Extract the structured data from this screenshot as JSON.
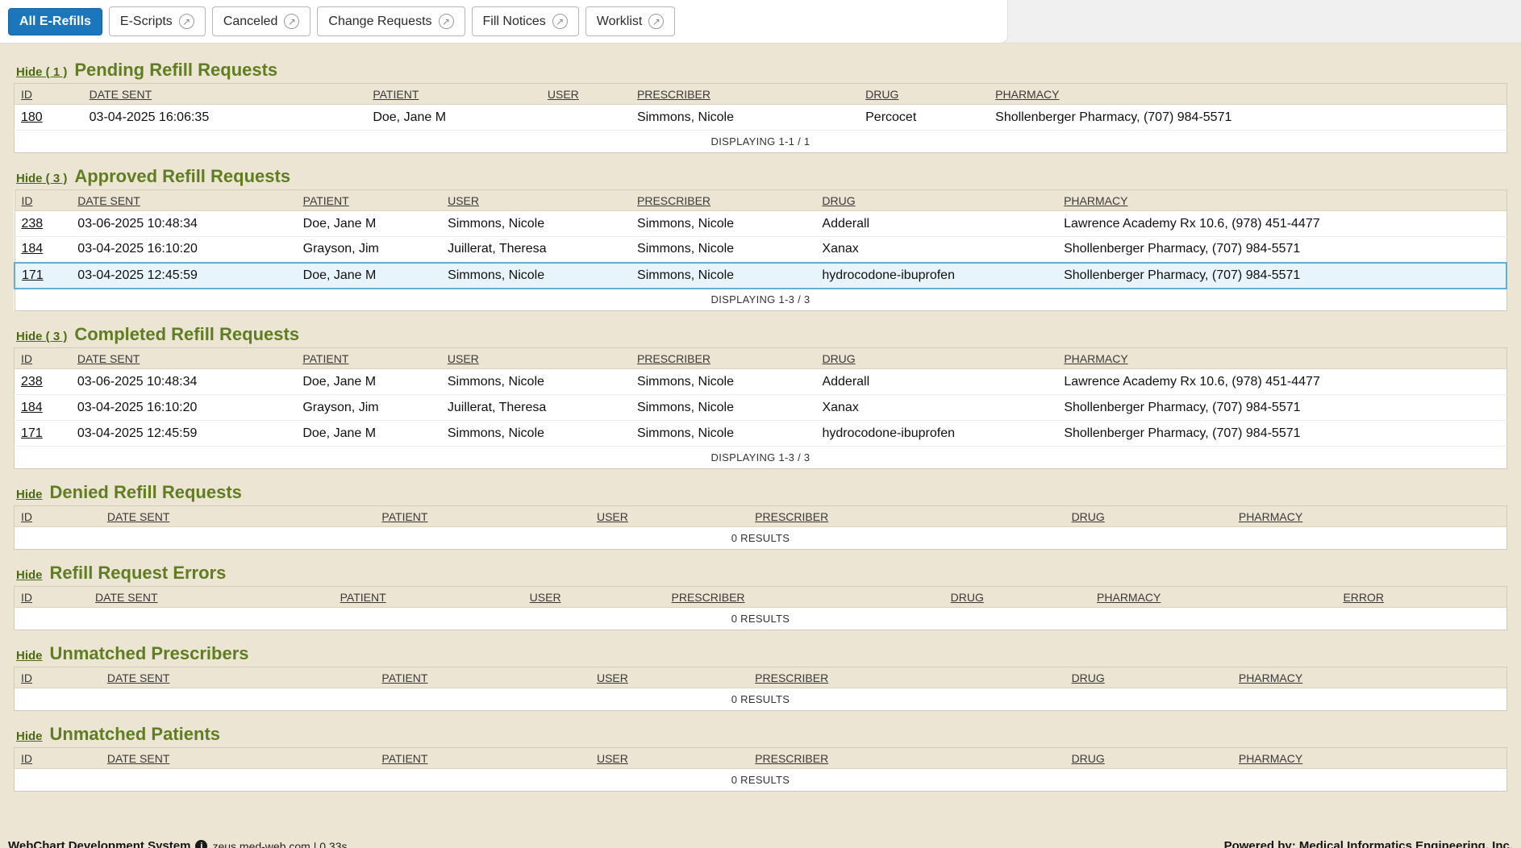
{
  "tabs": [
    {
      "label": "All E-Refills",
      "active": true,
      "external": false
    },
    {
      "label": "E-Scripts",
      "active": false,
      "external": true
    },
    {
      "label": "Canceled",
      "active": false,
      "external": true
    },
    {
      "label": "Change Requests",
      "active": false,
      "external": true
    },
    {
      "label": "Fill Notices",
      "active": false,
      "external": true
    },
    {
      "label": "Worklist",
      "active": false,
      "external": true
    }
  ],
  "icons": {
    "external_link_glyph": "↗",
    "info_glyph": "i"
  },
  "sections": [
    {
      "id": "pending-refill-requests",
      "hide_label": "Hide ( 1 )",
      "title": "Pending Refill Requests",
      "columns": [
        "ID",
        "DATE SENT",
        "PATIENT",
        "USER",
        "PRESCRIBER",
        "DRUG",
        "PHARMACY"
      ],
      "rows": [
        {
          "cells": [
            "180",
            "03-04-2025 16:06:35",
            "Doe, Jane M",
            "",
            "Simmons, Nicole",
            "Percocet",
            "Shollenberger Pharmacy, (707) 984-5571"
          ],
          "selected": false
        }
      ],
      "footer": "DISPLAYING 1-1 / 1"
    },
    {
      "id": "approved-refill-requests",
      "hide_label": "Hide ( 3 )",
      "title": "Approved Refill Requests",
      "columns": [
        "ID",
        "DATE SENT",
        "PATIENT",
        "USER",
        "PRESCRIBER",
        "DRUG",
        "PHARMACY"
      ],
      "rows": [
        {
          "cells": [
            "238",
            "03-06-2025 10:48:34",
            "Doe, Jane M",
            "Simmons, Nicole",
            "Simmons, Nicole",
            "Adderall",
            "Lawrence Academy Rx 10.6, (978) 451-4477"
          ],
          "selected": false
        },
        {
          "cells": [
            "184",
            "03-04-2025 16:10:20",
            "Grayson, Jim",
            "Juillerat, Theresa",
            "Simmons, Nicole",
            "Xanax",
            "Shollenberger Pharmacy, (707) 984-5571"
          ],
          "selected": false
        },
        {
          "cells": [
            "171",
            "03-04-2025 12:45:59",
            "Doe, Jane M",
            "Simmons, Nicole",
            "Simmons, Nicole",
            "hydrocodone-ibuprofen",
            "Shollenberger Pharmacy, (707) 984-5571"
          ],
          "selected": true
        }
      ],
      "footer": "DISPLAYING 1-3 / 3"
    },
    {
      "id": "completed-refill-requests",
      "hide_label": "Hide ( 3 )",
      "title": "Completed Refill Requests",
      "columns": [
        "ID",
        "DATE SENT",
        "PATIENT",
        "USER",
        "PRESCRIBER",
        "DRUG",
        "PHARMACY"
      ],
      "rows": [
        {
          "cells": [
            "238",
            "03-06-2025 10:48:34",
            "Doe, Jane M",
            "Simmons, Nicole",
            "Simmons, Nicole",
            "Adderall",
            "Lawrence Academy Rx 10.6, (978) 451-4477"
          ],
          "selected": false
        },
        {
          "cells": [
            "184",
            "03-04-2025 16:10:20",
            "Grayson, Jim",
            "Juillerat, Theresa",
            "Simmons, Nicole",
            "Xanax",
            "Shollenberger Pharmacy, (707) 984-5571"
          ],
          "selected": false
        },
        {
          "cells": [
            "171",
            "03-04-2025 12:45:59",
            "Doe, Jane M",
            "Simmons, Nicole",
            "Simmons, Nicole",
            "hydrocodone-ibuprofen",
            "Shollenberger Pharmacy, (707) 984-5571"
          ],
          "selected": false
        }
      ],
      "footer": "DISPLAYING 1-3 / 3"
    },
    {
      "id": "denied-refill-requests",
      "hide_label": "Hide",
      "title": "Denied Refill Requests",
      "columns": [
        "ID",
        "DATE SENT",
        "PATIENT",
        "USER",
        "PRESCRIBER",
        "DRUG",
        "PHARMACY"
      ],
      "rows": [],
      "footer": "0 RESULTS"
    },
    {
      "id": "refill-request-errors",
      "hide_label": "Hide",
      "title": "Refill Request Errors",
      "columns": [
        "ID",
        "DATE SENT",
        "PATIENT",
        "USER",
        "PRESCRIBER",
        "DRUG",
        "PHARMACY",
        "ERROR"
      ],
      "rows": [],
      "footer": "0 RESULTS"
    },
    {
      "id": "unmatched-prescribers",
      "hide_label": "Hide",
      "title": "Unmatched Prescribers",
      "columns": [
        "ID",
        "DATE SENT",
        "PATIENT",
        "USER",
        "PRESCRIBER",
        "DRUG",
        "PHARMACY"
      ],
      "rows": [],
      "footer": "0 RESULTS"
    },
    {
      "id": "unmatched-patients",
      "hide_label": "Hide",
      "title": "Unmatched Patients",
      "columns": [
        "ID",
        "DATE SENT",
        "PATIENT",
        "USER",
        "PRESCRIBER",
        "DRUG",
        "PHARMACY"
      ],
      "rows": [],
      "footer": "0 RESULTS"
    }
  ],
  "statusbar": {
    "system_name": "WebChart Development System",
    "host_info": "zeus.med-web.com | 0.33s",
    "powered_by": "Powered by: Medical Informatics Engineering, Inc."
  },
  "colors": {
    "accent_blue": "#1b76bc",
    "section_green": "#5f7d21",
    "selected_row_bg": "#e8f4fc",
    "selected_row_border": "#63add9",
    "page_bg": "#ece5d3"
  }
}
